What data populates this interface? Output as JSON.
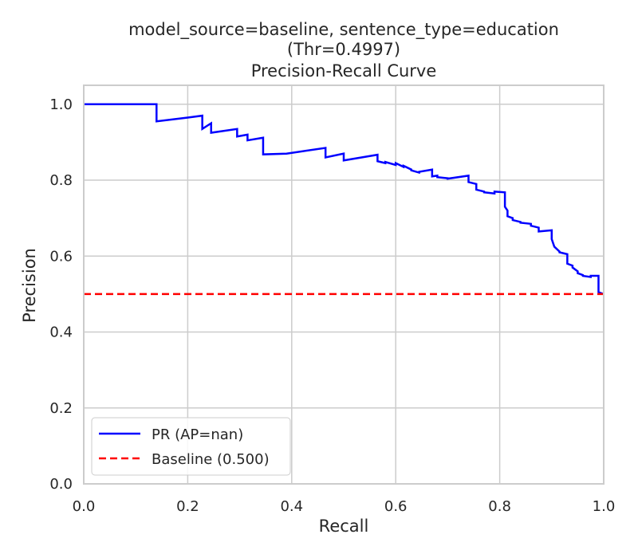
{
  "chart_data": {
    "type": "line",
    "title_lines": [
      "model_source=baseline, sentence_type=education",
      "(Thr=0.4997)",
      "Precision-Recall Curve"
    ],
    "xlabel": "Recall",
    "ylabel": "Precision",
    "xlim": [
      0.0,
      1.0
    ],
    "ylim": [
      0.0,
      1.05
    ],
    "xticks": [
      "0.0",
      "0.2",
      "0.4",
      "0.6",
      "0.8",
      "1.0"
    ],
    "yticks": [
      "0.0",
      "0.2",
      "0.4",
      "0.6",
      "0.8",
      "1.0"
    ],
    "grid": true,
    "legend_position": "lower-left",
    "colors": {
      "pr": "#0000ff",
      "baseline": "#ff0000",
      "grid": "#cccccc",
      "frame": "#cccccc"
    },
    "series": [
      {
        "name": "PR (AP=nan)",
        "style": "solid",
        "x": [
          0.0,
          0.14,
          0.14,
          0.2,
          0.228,
          0.228,
          0.245,
          0.245,
          0.295,
          0.295,
          0.315,
          0.315,
          0.345,
          0.345,
          0.39,
          0.39,
          0.465,
          0.465,
          0.5,
          0.5,
          0.565,
          0.565,
          0.58,
          0.58,
          0.6,
          0.6,
          0.615,
          0.615,
          0.63,
          0.63,
          0.645,
          0.645,
          0.67,
          0.67,
          0.68,
          0.68,
          0.7,
          0.7,
          0.74,
          0.74,
          0.755,
          0.755,
          0.77,
          0.77,
          0.79,
          0.79,
          0.81,
          0.81,
          0.815,
          0.815,
          0.825,
          0.825,
          0.84,
          0.84,
          0.86,
          0.86,
          0.875,
          0.875,
          0.9,
          0.9,
          0.905,
          0.905,
          0.915,
          0.915,
          0.93,
          0.93,
          0.94,
          0.94,
          0.95,
          0.95,
          0.96,
          0.96,
          0.975,
          0.975,
          0.99,
          0.99,
          1.0
        ],
        "y": [
          1.0,
          1.0,
          0.955,
          0.965,
          0.97,
          0.935,
          0.95,
          0.925,
          0.935,
          0.915,
          0.92,
          0.905,
          0.912,
          0.868,
          0.87,
          0.87,
          0.885,
          0.86,
          0.87,
          0.852,
          0.867,
          0.85,
          0.845,
          0.848,
          0.84,
          0.845,
          0.835,
          0.838,
          0.828,
          0.826,
          0.82,
          0.822,
          0.828,
          0.81,
          0.812,
          0.808,
          0.805,
          0.804,
          0.812,
          0.795,
          0.79,
          0.775,
          0.77,
          0.768,
          0.765,
          0.77,
          0.768,
          0.73,
          0.72,
          0.705,
          0.7,
          0.695,
          0.69,
          0.688,
          0.685,
          0.68,
          0.675,
          0.665,
          0.668,
          0.645,
          0.625,
          0.625,
          0.612,
          0.61,
          0.605,
          0.58,
          0.575,
          0.57,
          0.56,
          0.555,
          0.55,
          0.548,
          0.545,
          0.548,
          0.548,
          0.505,
          0.5
        ]
      },
      {
        "name": "Baseline (0.500)",
        "style": "dashed",
        "x": [
          0.0,
          1.0
        ],
        "y": [
          0.5,
          0.5
        ]
      }
    ]
  }
}
